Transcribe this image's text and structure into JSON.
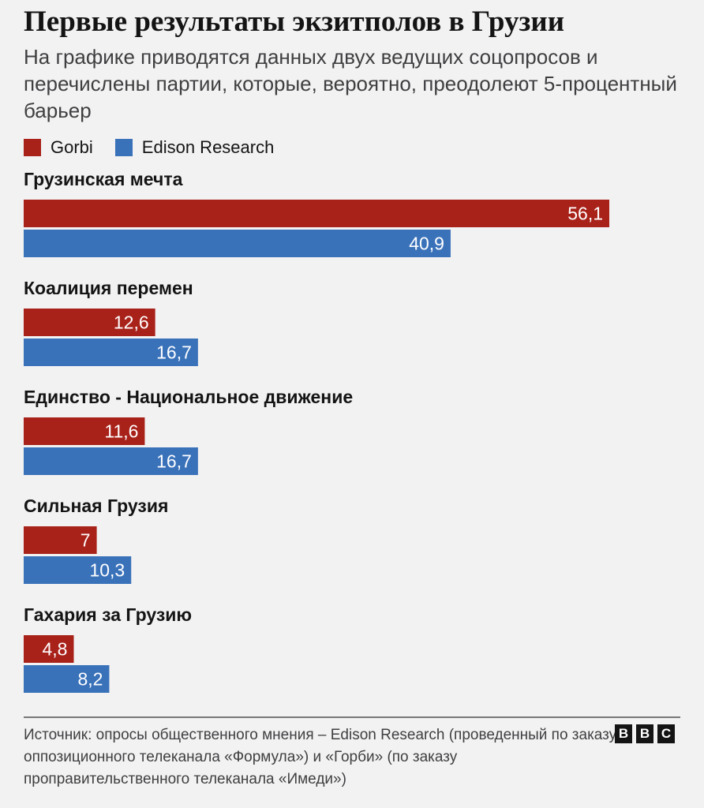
{
  "title": "Первые результаты экзитполов в Грузии",
  "subtitle": "На графике приводятся данных двух ведущих соцопросов и перечислены партии, которые, вероятно, преодолеют 5-процентный барьер",
  "source": "Источник: опросы общественного мнения – Edison Research (проведенный по заказу оппозиционного телеканала «Формула») и «Горби» (по заказу проправительственного телеканала «Имеди»)",
  "logo": {
    "letters": [
      "B",
      "B",
      "C"
    ]
  },
  "colors": {
    "gorbi": "#a8221a",
    "edison": "#3a72ba"
  },
  "chart_data": {
    "type": "bar",
    "orientation": "horizontal",
    "categories": [
      "Грузинская мечта",
      "Коалиция перемен",
      "Единство - Национальное движение",
      "Сильная Грузия",
      "Гахария за Грузию"
    ],
    "series": [
      {
        "name": "Gorbi",
        "color": "#a8221a",
        "values": [
          56.1,
          12.6,
          11.6,
          7,
          4.8
        ],
        "labels": [
          "56,1",
          "12,6",
          "11,6",
          "7",
          "4,8"
        ]
      },
      {
        "name": "Edison Research",
        "color": "#3a72ba",
        "values": [
          40.9,
          16.7,
          16.7,
          10.3,
          8.2
        ],
        "labels": [
          "40,9",
          "16,7",
          "16,7",
          "10,3",
          "8,2"
        ]
      }
    ],
    "legend": "top-left",
    "grid": false,
    "xlim": [
      0,
      56.1
    ]
  }
}
